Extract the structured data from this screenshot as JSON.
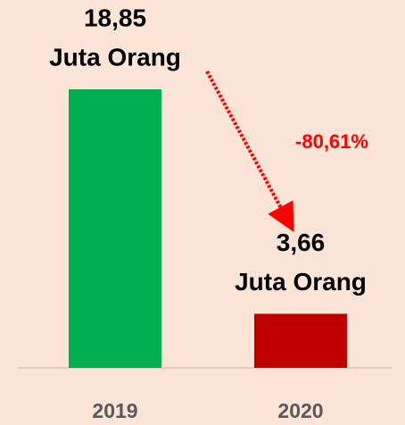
{
  "chart_data": {
    "type": "bar",
    "categories": [
      "2019",
      "2020"
    ],
    "values": [
      18.85,
      3.66
    ],
    "value_labels": [
      "18,85",
      "3,66"
    ],
    "unit_label": "Juta Orang",
    "colors": [
      "#00b050",
      "#c00000"
    ],
    "annotation": "-80,61%",
    "ylim": [
      0,
      20
    ]
  }
}
